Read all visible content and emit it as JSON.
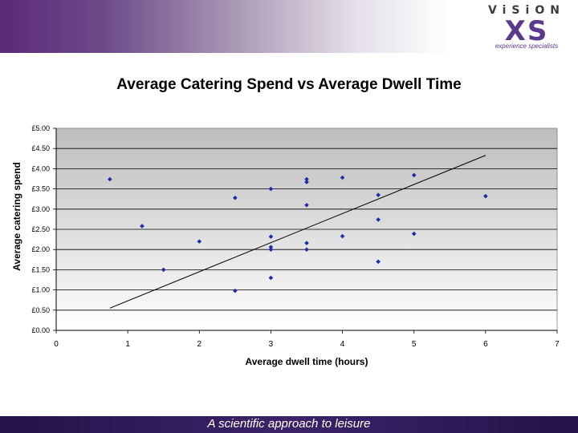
{
  "logo": {
    "word": "ViSiON",
    "mark": "XS",
    "tagline": "experience specialists"
  },
  "footer": {
    "text": "A scientific approach to leisure"
  },
  "chart_data": {
    "type": "scatter",
    "title": "Average Catering Spend vs Average Dwell Time",
    "xlabel": "Average dwell time (hours)",
    "ylabel": "Average catering spend",
    "xlim": [
      0,
      7
    ],
    "ylim": [
      0,
      5
    ],
    "xticks": [
      "0",
      "1",
      "2",
      "3",
      "4",
      "5",
      "6",
      "7"
    ],
    "yticks": [
      "£0.00",
      "£0.50",
      "£1.00",
      "£1.50",
      "£2.00",
      "£2.50",
      "£3.00",
      "£3.50",
      "£4.00",
      "£4.50",
      "£5.00"
    ],
    "grid": "horizontal",
    "marker_color": "#1f2aa8",
    "trendline": {
      "x": [
        0.75,
        6.0
      ],
      "y": [
        0.55,
        4.33
      ]
    },
    "points": [
      {
        "x": 0.75,
        "y": 3.74
      },
      {
        "x": 1.2,
        "y": 2.58
      },
      {
        "x": 1.5,
        "y": 1.5
      },
      {
        "x": 2.0,
        "y": 2.2
      },
      {
        "x": 2.5,
        "y": 3.28
      },
      {
        "x": 2.5,
        "y": 0.98
      },
      {
        "x": 3.0,
        "y": 3.5
      },
      {
        "x": 3.0,
        "y": 2.32
      },
      {
        "x": 3.0,
        "y": 2.06
      },
      {
        "x": 3.0,
        "y": 2.0
      },
      {
        "x": 3.0,
        "y": 1.3
      },
      {
        "x": 3.5,
        "y": 3.74
      },
      {
        "x": 3.5,
        "y": 3.67
      },
      {
        "x": 3.5,
        "y": 3.1
      },
      {
        "x": 3.5,
        "y": 2.16
      },
      {
        "x": 3.5,
        "y": 2.0
      },
      {
        "x": 4.0,
        "y": 3.78
      },
      {
        "x": 4.0,
        "y": 2.33
      },
      {
        "x": 4.5,
        "y": 3.35
      },
      {
        "x": 4.5,
        "y": 2.74
      },
      {
        "x": 4.5,
        "y": 1.7
      },
      {
        "x": 5.0,
        "y": 3.84
      },
      {
        "x": 5.0,
        "y": 2.39
      },
      {
        "x": 6.0,
        "y": 3.32
      }
    ]
  }
}
